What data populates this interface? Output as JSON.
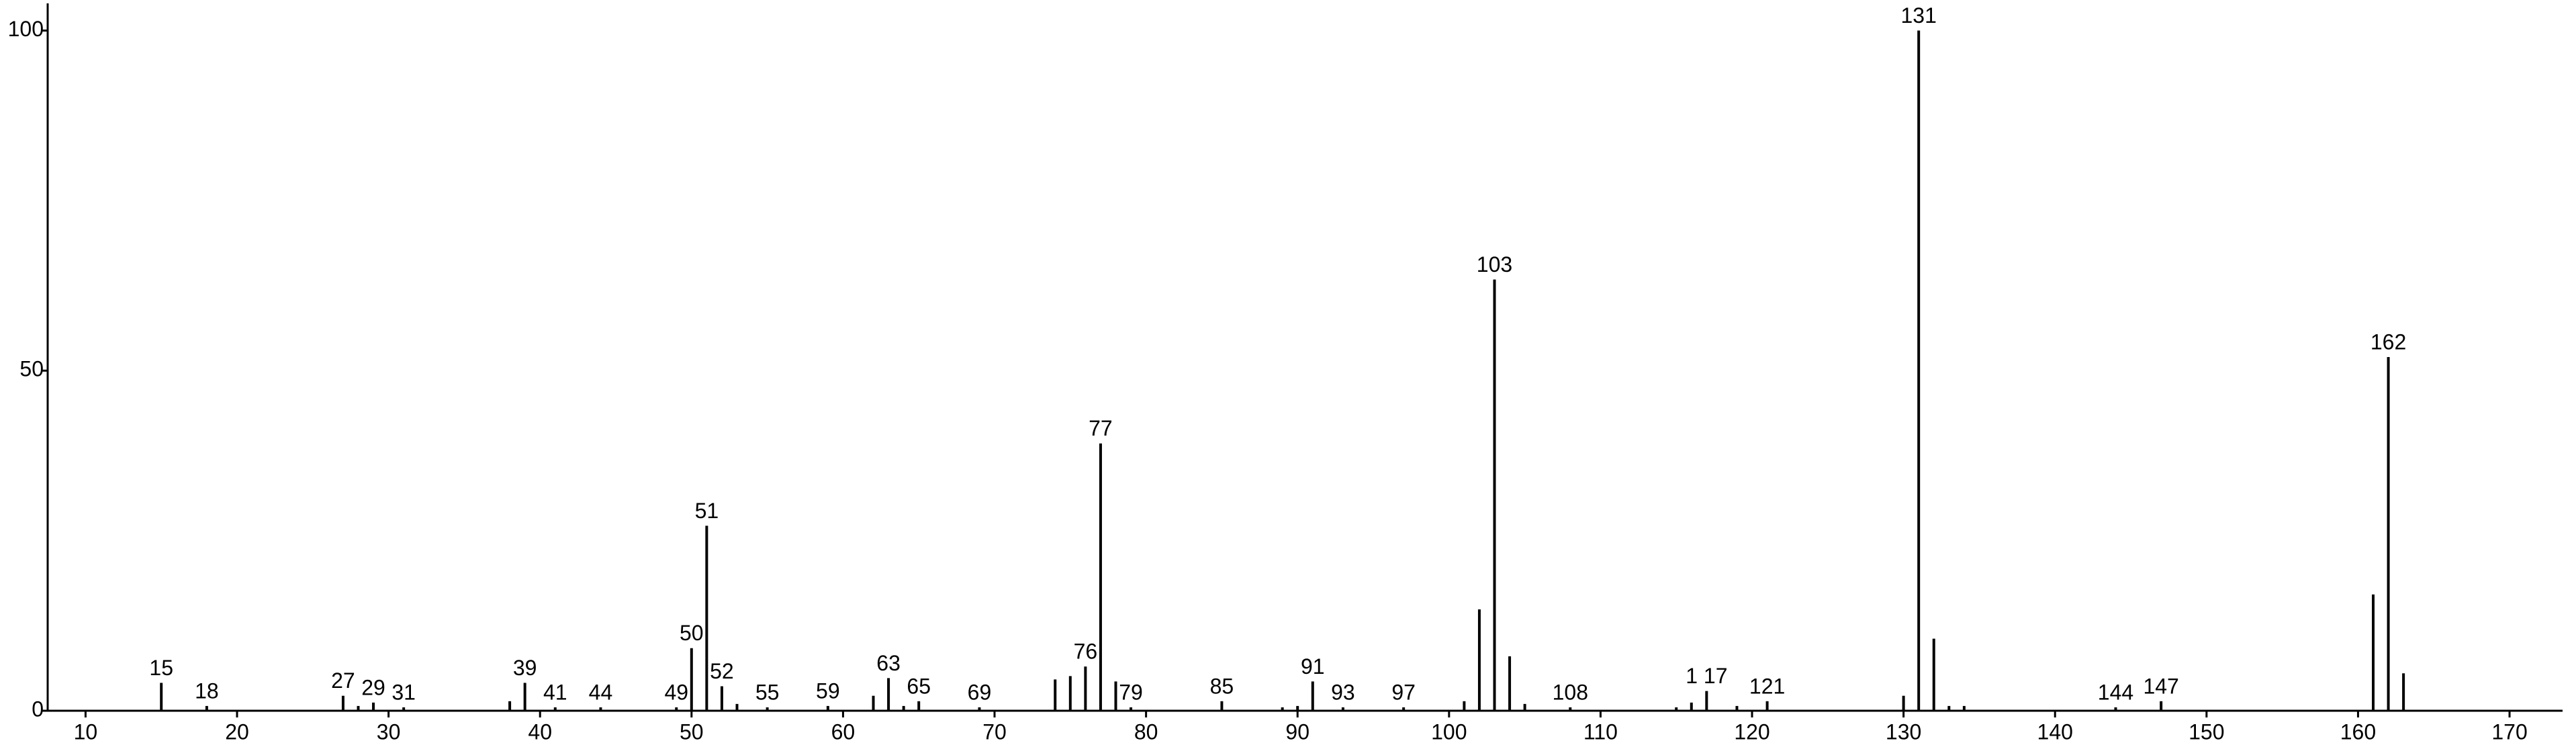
{
  "chart_data": {
    "type": "stem",
    "x": [
      15,
      18,
      27,
      28,
      29,
      31,
      38,
      39,
      41,
      44,
      49,
      50,
      51,
      52,
      53,
      55,
      59,
      62,
      63,
      64,
      65,
      69,
      74,
      75,
      76,
      77,
      78,
      79,
      85,
      89,
      90,
      91,
      93,
      97,
      101,
      102,
      103,
      104,
      105,
      108,
      115,
      116,
      117,
      119,
      121,
      130,
      131,
      132,
      133,
      134,
      144,
      147,
      161,
      162,
      163
    ],
    "values": [
      4.1,
      0.7,
      2.2,
      0.7,
      1.2,
      0.5,
      1.4,
      4.1,
      0.5,
      0.5,
      0.5,
      9.2,
      27.2,
      3.6,
      1.0,
      0.5,
      0.7,
      2.2,
      4.8,
      0.7,
      1.4,
      0.5,
      4.6,
      5.1,
      6.5,
      39.3,
      4.3,
      0.5,
      1.4,
      0.5,
      0.7,
      4.3,
      0.5,
      0.5,
      1.4,
      14.9,
      63.4,
      8.0,
      1.0,
      0.5,
      0.5,
      1.2,
      2.9,
      0.7,
      1.4,
      2.2,
      100,
      10.6,
      0.7,
      0.7,
      0.5,
      1.4,
      17.1,
      52.0,
      5.5
    ],
    "point_labels": [
      "15",
      "18",
      "27",
      null,
      "29",
      "31",
      null,
      "39",
      "41",
      "44",
      "49",
      "50",
      "51",
      "52",
      null,
      "55",
      "59",
      null,
      "63",
      null,
      "65",
      "69",
      null,
      null,
      "76",
      "77",
      null,
      "79",
      "85",
      null,
      null,
      "91",
      "93",
      "97",
      null,
      null,
      "103",
      null,
      null,
      "108",
      null,
      null,
      "1 17",
      null,
      "121",
      null,
      "131",
      null,
      null,
      null,
      "144",
      "147",
      null,
      "162",
      null
    ],
    "color": "#000000",
    "xlim": [
      7.5,
      173.5
    ],
    "xticks": [
      10,
      20,
      30,
      40,
      50,
      60,
      70,
      80,
      90,
      100,
      110,
      120,
      130,
      140,
      150,
      160,
      170
    ],
    "ylim": [
      0,
      104
    ],
    "yticks": [
      0,
      50,
      100
    ],
    "grid": false
  }
}
